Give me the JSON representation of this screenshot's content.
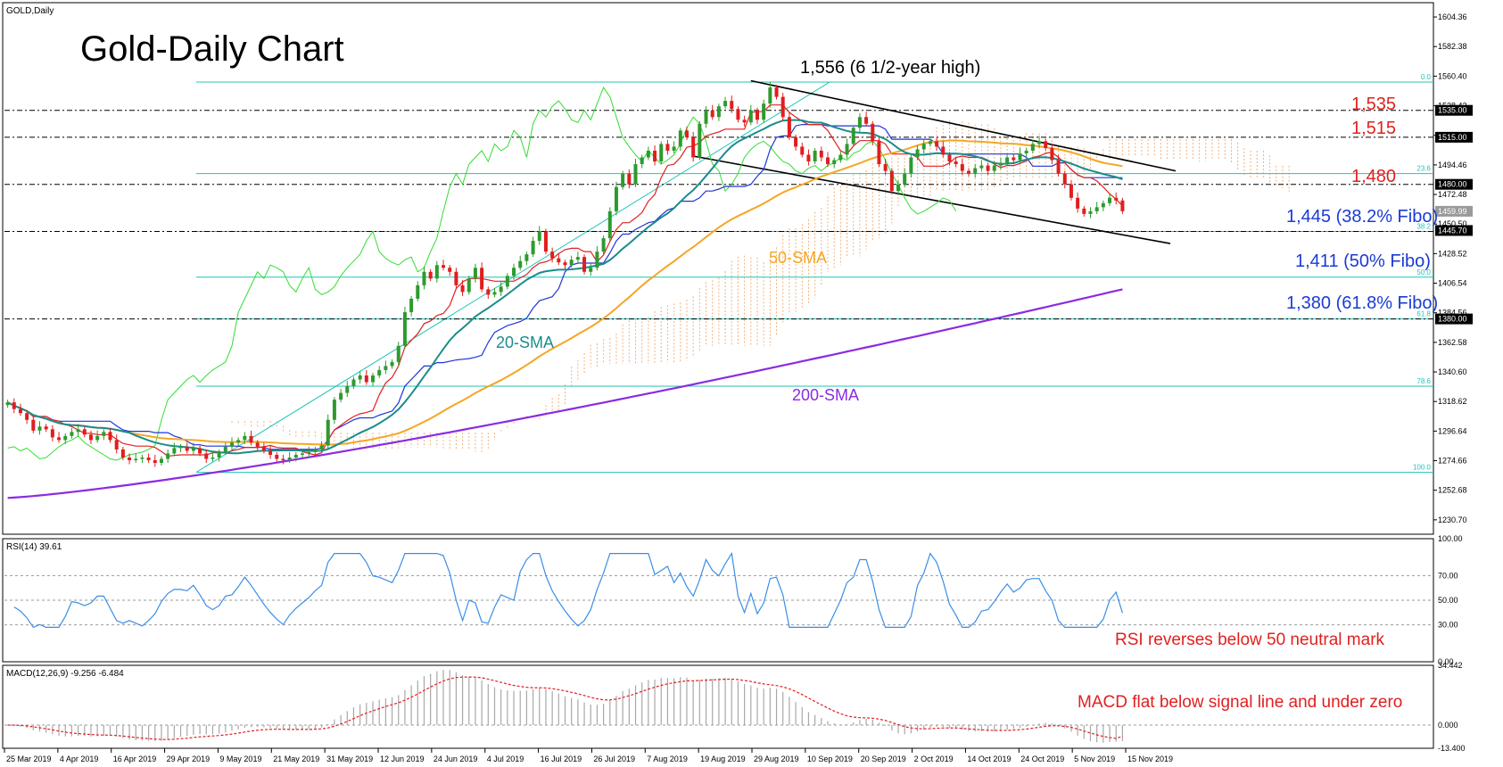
{
  "header": {
    "symbol_label": "GOLD,Daily",
    "title": "Gold-Daily Chart"
  },
  "rsi_panel": {
    "label": "RSI(14) 39.61",
    "note": "RSI reverses below 50 neutral mark",
    "axis_ticks": [
      "100.00",
      "70.00",
      "50.00",
      "30.00",
      "0.00"
    ]
  },
  "macd_panel": {
    "label": "MACD(12,26,9) -9.256 -6.484",
    "note": "MACD flat below signal line and under zero",
    "axis_ticks": [
      "34.442",
      "0.000",
      "-13.400"
    ]
  },
  "annotations": {
    "high": "1,556 (6 1/2-year high)",
    "r1535": "1,535",
    "r1515": "1,515",
    "r1480": "1,480",
    "fib382": "1,445 (38.2% Fibo)",
    "fib50": "1,411 (50% Fibo)",
    "fib618": "1,380 (61.8% Fibo)",
    "sma20": "20-SMA",
    "sma50": "50-SMA",
    "sma200": "200-SMA"
  },
  "colors": {
    "candle_up": "#2e9a2e",
    "candle_down": "#e01e1e",
    "sma20": "#1b8c8c",
    "sma50": "#f5a623",
    "sma200": "#8a2be2",
    "tenkan": "#e02020",
    "kijun": "#1f35d8",
    "chikou": "#33dd33",
    "cloud": "#f3b07a",
    "fibo": "#20c5b5",
    "rsi": "#3a8ee6",
    "macd_signal": "#e02020",
    "annotation_red": "#e02020",
    "annotation_blue": "#1a3bd6"
  },
  "chart_data": {
    "type": "candlestick",
    "title": "Gold-Daily Chart",
    "timeframe": "Daily",
    "y_axis": {
      "range": [
        1220,
        1615
      ],
      "ticks": [
        "1604.36",
        "1582.38",
        "1560.40",
        "1538.42",
        "1516.44",
        "1494.46",
        "1472.48",
        "1450.50",
        "1428.52",
        "1406.54",
        "1384.56",
        "1362.58",
        "1340.60",
        "1318.62",
        "1296.64",
        "1274.66",
        "1252.68",
        "1230.70"
      ],
      "highlighted_labels": [
        "1535.00",
        "1515.00",
        "1480.00",
        "1459.99",
        "1445.70",
        "1380.00"
      ]
    },
    "x_axis": {
      "ticks": [
        "25 Mar 2019",
        "4 Apr 2019",
        "16 Apr 2019",
        "29 Apr 2019",
        "9 May 2019",
        "21 May 2019",
        "31 May 2019",
        "12 Jun 2019",
        "24 Jun 2019",
        "4 Jul 2019",
        "16 Jul 2019",
        "26 Jul 2019",
        "7 Aug 2019",
        "19 Aug 2019",
        "29 Aug 2019",
        "10 Sep 2019",
        "20 Sep 2019",
        "2 Oct 2019",
        "14 Oct 2019",
        "24 Oct 2019",
        "5 Nov 2019",
        "15 Nov 2019"
      ]
    },
    "fibonacci": {
      "low": 1266,
      "high": 1556,
      "levels": [
        {
          "label": "0.0",
          "value": 1556
        },
        {
          "label": "23.6",
          "value": 1488
        },
        {
          "label": "38.2",
          "value": 1445
        },
        {
          "label": "50.0",
          "value": 1411
        },
        {
          "label": "61.8",
          "value": 1380
        },
        {
          "label": "78.6",
          "value": 1330
        },
        {
          "label": "100.0",
          "value": 1266
        }
      ]
    },
    "horizontal_levels": [
      1535,
      1515,
      1480,
      1445,
      1380
    ],
    "last_price": 1459.99,
    "close": [
      1318,
      1313,
      1310,
      1305,
      1297,
      1300,
      1298,
      1292,
      1290,
      1293,
      1296,
      1298,
      1294,
      1290,
      1293,
      1296,
      1290,
      1283,
      1277,
      1275,
      1276,
      1277,
      1275,
      1273,
      1276,
      1280,
      1284,
      1285,
      1282,
      1284,
      1280,
      1276,
      1277,
      1281,
      1285,
      1288,
      1290,
      1293,
      1288,
      1285,
      1282,
      1279,
      1276,
      1275,
      1277,
      1279,
      1280,
      1281,
      1283,
      1286,
      1305,
      1320,
      1325,
      1330,
      1335,
      1338,
      1333,
      1338,
      1342,
      1345,
      1348,
      1360,
      1385,
      1395,
      1405,
      1415,
      1410,
      1420,
      1418,
      1415,
      1405,
      1400,
      1410,
      1418,
      1402,
      1398,
      1400,
      1404,
      1412,
      1418,
      1423,
      1428,
      1438,
      1445,
      1430,
      1425,
      1422,
      1420,
      1424,
      1426,
      1415,
      1418,
      1430,
      1440,
      1460,
      1478,
      1488,
      1480,
      1495,
      1500,
      1505,
      1497,
      1510,
      1505,
      1508,
      1520,
      1515,
      1500,
      1525,
      1535,
      1530,
      1538,
      1542,
      1536,
      1528,
      1526,
      1535,
      1528,
      1540,
      1552,
      1545,
      1530,
      1515,
      1508,
      1502,
      1497,
      1505,
      1500,
      1495,
      1498,
      1502,
      1510,
      1522,
      1530,
      1525,
      1512,
      1495,
      1490,
      1475,
      1480,
      1488,
      1500,
      1506,
      1510,
      1512,
      1508,
      1502,
      1497,
      1495,
      1490,
      1488,
      1492,
      1494,
      1490,
      1494,
      1496,
      1500,
      1498,
      1503,
      1505,
      1510,
      1512,
      1507,
      1498,
      1488,
      1480,
      1470,
      1462,
      1458,
      1460,
      1463,
      1466,
      1470,
      1468,
      1460
    ],
    "sma200": {
      "start": 1247,
      "end": 1402
    },
    "rsi": {
      "current": 39.61,
      "range": [
        0,
        100
      ],
      "levels": [
        70,
        50,
        30
      ]
    },
    "macd": {
      "macd": -9.256,
      "signal": -6.484,
      "range": [
        -13.4,
        34.442
      ]
    }
  }
}
